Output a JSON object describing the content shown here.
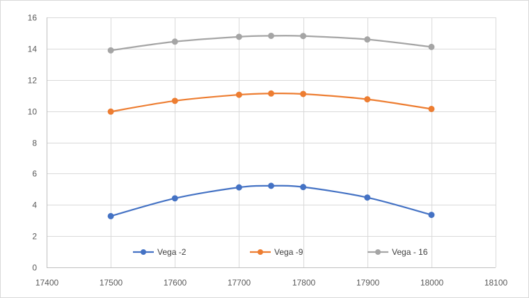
{
  "chart_data": {
    "type": "line",
    "x": [
      17500,
      17600,
      17700,
      17750,
      17800,
      17900,
      18000
    ],
    "series": [
      {
        "name": "Vega -2",
        "color": "#4472c4",
        "values": [
          3.28,
          4.42,
          5.12,
          5.22,
          5.14,
          4.47,
          3.36
        ]
      },
      {
        "name": "Vega -9",
        "color": "#ed7d31",
        "values": [
          9.97,
          10.66,
          11.05,
          11.13,
          11.1,
          10.76,
          10.14
        ]
      },
      {
        "name": "Vega - 16",
        "color": "#a5a5a5",
        "values": [
          13.89,
          14.45,
          14.76,
          14.82,
          14.81,
          14.59,
          14.11
        ]
      }
    ],
    "xlim": [
      17400,
      18100
    ],
    "ylim": [
      0,
      16
    ],
    "xticks": [
      17400,
      17500,
      17600,
      17700,
      17800,
      17900,
      18000,
      18100
    ],
    "yticks": [
      0,
      2,
      4,
      6,
      8,
      10,
      12,
      14,
      16
    ],
    "grid": true,
    "legend_position": "bottom-inside",
    "title": "",
    "xlabel": "",
    "ylabel": ""
  }
}
